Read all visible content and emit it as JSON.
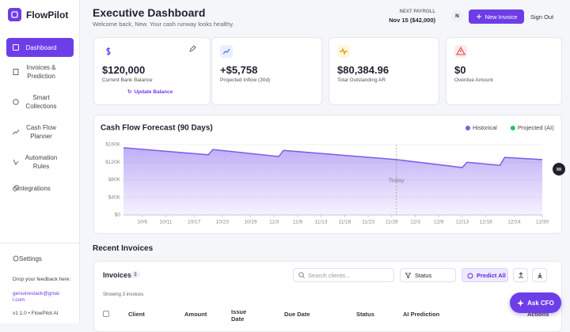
{
  "sidebar": {
    "brand": "FlowPilot",
    "nav": [
      {
        "label": "Dashboard"
      },
      {
        "label": "Invoices & Prediction"
      },
      {
        "label": "Smart Collections"
      },
      {
        "label": "Cash Flow Planner"
      },
      {
        "label": "Automation Rules"
      },
      {
        "label": "Integrations"
      }
    ],
    "settings": "Settings",
    "feedback": "Drop your feedback here:",
    "email": "genuinestack@gmail.com",
    "version": "v1.1.0 • FlowPilot AI"
  },
  "header": {
    "title": "Executive Dashboard",
    "subtitle": "Welcome back, New. Your cash runway looks healthy.",
    "payroll_label": "NEXT PAYROLL",
    "payroll_value": "Nov 15 ($42,000)",
    "avatar": "N",
    "new_invoice": "New Invoice",
    "sign_out": "Sign Out"
  },
  "kpis": [
    {
      "value": "$120,000",
      "label": "Current Bank Balance",
      "action": "Update Balance"
    },
    {
      "value": "+$5,758",
      "label": "Projected Inflow (30d)"
    },
    {
      "value": "$80,384.96",
      "label": "Total Outstanding AR"
    },
    {
      "value": "$0",
      "label": "Overdue Amount"
    }
  ],
  "chart_data": {
    "type": "area",
    "title": "Cash Flow Forecast (90 Days)",
    "series": [
      {
        "name": "Historical",
        "color": "#7c5ce6",
        "x": [
          "10/2",
          "10/20",
          "10/21",
          "11/4",
          "11/5",
          "11/29",
          "12/13",
          "12/14",
          "12/21",
          "12/22",
          "12/30"
        ],
        "values": [
          153000,
          137000,
          149000,
          133000,
          147000,
          126000,
          108000,
          120000,
          113000,
          131000,
          126000
        ]
      }
    ],
    "legend": [
      {
        "name": "Historical",
        "color": "#7c5ce6"
      },
      {
        "name": "Projected (AI)",
        "color": "#22c55e"
      }
    ],
    "xlim": [
      "10/2",
      "12/30"
    ],
    "xticks": [
      "10/6",
      "10/11",
      "10/17",
      "10/23",
      "10/29",
      "11/3",
      "11/8",
      "11/13",
      "11/18",
      "11/23",
      "11/28",
      "12/3",
      "12/8",
      "12/13",
      "12/18",
      "12/24",
      "12/30"
    ],
    "ylim": [
      0,
      160000
    ],
    "yticks": [
      {
        "value": 0,
        "label": "$0"
      },
      {
        "value": 40000,
        "label": "$40K"
      },
      {
        "value": 80000,
        "label": "$80K"
      },
      {
        "value": 120000,
        "label": "$120K"
      },
      {
        "value": 160000,
        "label": "$160K"
      }
    ],
    "grid": true,
    "today": {
      "x": "11/29",
      "label": "Today"
    }
  },
  "invoices": {
    "section_title": "Recent Invoices",
    "title": "Invoices",
    "count": 3,
    "search_placeholder": "Search clients...",
    "status_filter": "Status",
    "predict_all": "Predict All",
    "showing": "Showing 3 invoices",
    "columns": [
      "Client",
      "Amount",
      "Issue Date",
      "Due Date",
      "Status",
      "AI Prediction",
      "Actions"
    ]
  },
  "ask_cfo": "Ask CFO"
}
